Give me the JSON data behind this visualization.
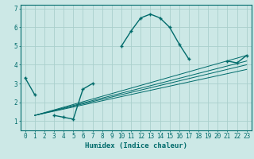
{
  "title": "",
  "xlabel": "Humidex (Indice chaleur)",
  "bg_color": "#cce8e6",
  "grid_color": "#aacfcc",
  "line_color": "#006b6b",
  "x_data": [
    0,
    1,
    2,
    3,
    4,
    5,
    6,
    7,
    8,
    9,
    10,
    11,
    12,
    13,
    14,
    15,
    16,
    17,
    18,
    19,
    20,
    21,
    22,
    23
  ],
  "y_main": [
    3.3,
    2.4,
    null,
    1.3,
    1.2,
    1.1,
    2.7,
    3.0,
    null,
    null,
    5.0,
    5.8,
    6.5,
    6.7,
    6.5,
    6.0,
    5.1,
    4.3,
    null,
    null,
    null,
    4.2,
    4.1,
    4.5
  ],
  "trend_lines": [
    {
      "x": [
        1,
        23
      ],
      "y": [
        1.3,
        4.5
      ]
    },
    {
      "x": [
        1,
        23
      ],
      "y": [
        1.3,
        4.2
      ]
    },
    {
      "x": [
        1,
        23
      ],
      "y": [
        1.3,
        4.0
      ]
    },
    {
      "x": [
        1,
        23
      ],
      "y": [
        1.3,
        3.75
      ]
    }
  ],
  "ylim": [
    0.5,
    7.2
  ],
  "xlim": [
    -0.5,
    23.5
  ],
  "yticks": [
    1,
    2,
    3,
    4,
    5,
    6,
    7
  ],
  "xticks": [
    0,
    1,
    2,
    3,
    4,
    5,
    6,
    7,
    8,
    9,
    10,
    11,
    12,
    13,
    14,
    15,
    16,
    17,
    18,
    19,
    20,
    21,
    22,
    23
  ],
  "xlabel_fontsize": 6.5,
  "tick_fontsize": 5.5,
  "line_width": 1.0,
  "marker_size": 3.5,
  "trend_linewidth": 0.7
}
